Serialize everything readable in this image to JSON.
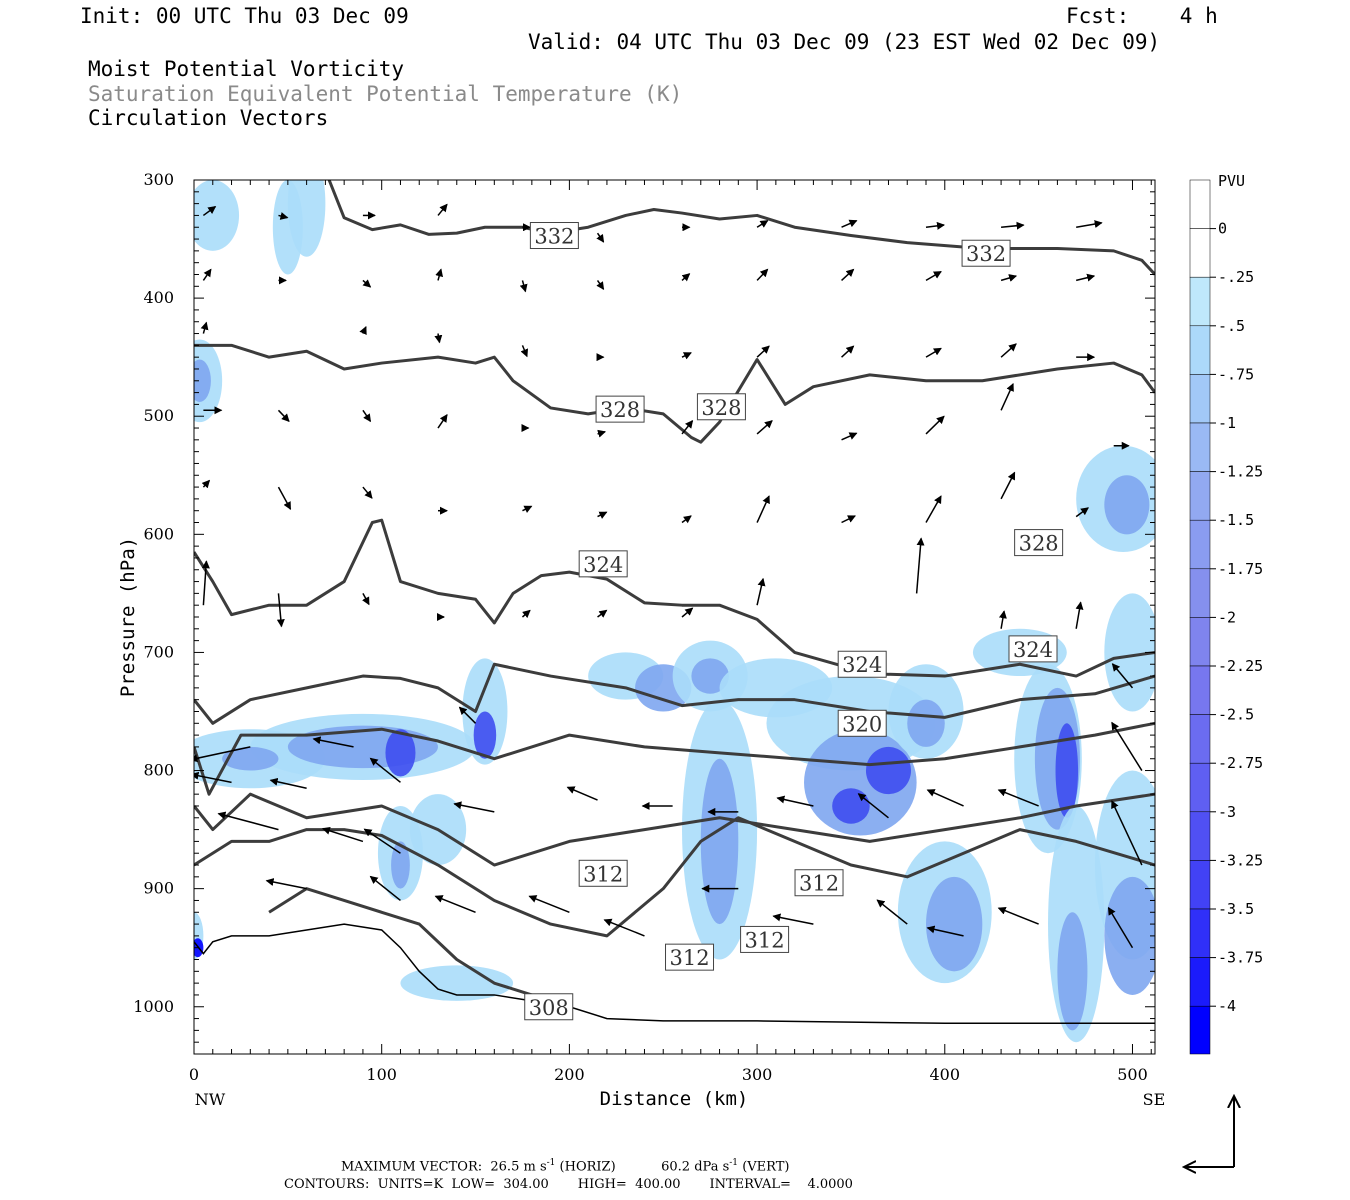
{
  "header": {
    "init": "Init: 00 UTC Thu 03 Dec 09",
    "fcst": "Fcst:    4 h",
    "valid": "Valid: 04 UTC Thu 03 Dec 09 (23 EST Wed 02 Dec 09)",
    "field1": "Moist Potential Vorticity",
    "field2": "Saturation Equivalent Potential Temperature (K)",
    "field3": "Circulation Vectors"
  },
  "colors": {
    "contour": "#3c3c3c",
    "pv_light": "#aaddfa",
    "pv_mid": "#7ea6f0",
    "pv_strong": "#3e4ef0",
    "pv_max": "#0000ff"
  },
  "colorbar": {
    "unit": "PVU",
    "labels": [
      "0",
      "-.25",
      "-.5",
      "-.75",
      "-1",
      "-1.25",
      "-1.5",
      "-1.75",
      "-2",
      "-2.25",
      "-2.5",
      "-2.75",
      "-3",
      "-3.25",
      "-3.5",
      "-3.75",
      "-4"
    ],
    "colors": [
      "#ffffff",
      "#ffffff",
      "#bfe8fb",
      "#acd9fa",
      "#a2c8f7",
      "#9ab9f4",
      "#92a9f1",
      "#8a9cf0",
      "#8590ee",
      "#7f84ee",
      "#7777ef",
      "#6b6cf0",
      "#5f5ff2",
      "#5050f3",
      "#4242f5",
      "#3030f8",
      "#1b1bfb",
      "#0000ff"
    ]
  },
  "footer": {
    "max_vector_label": "MAXIMUM VECTOR:",
    "horiz_value": "26.5",
    "horiz_unit": "m s",
    "horiz_exp": "-1",
    "horiz_tag": "(HORIZ)",
    "vert_value": "60.2",
    "vert_unit": "dPa s",
    "vert_exp": "-1",
    "vert_tag": "(VERT)",
    "contours_line": "CONTOURS:  UNITS=K  LOW=  304.00       HIGH=  400.00       INTERVAL=    4.0000"
  },
  "chart_data": {
    "type": "heatmap",
    "title": "Moist Potential Vorticity",
    "xlabel": "Distance (km)",
    "ylabel": "Pressure (hPa)",
    "xlim": [
      0,
      512
    ],
    "ylim": [
      1040,
      300
    ],
    "y_scale": "linear-inverted",
    "x_ticks": [
      0,
      100,
      200,
      300,
      400,
      500
    ],
    "x_tick_labels": [
      "0",
      "100",
      "200",
      "300",
      "400",
      "500"
    ],
    "x_end_labels": [
      "NW",
      "SE"
    ],
    "y_ticks": [
      300,
      400,
      500,
      600,
      700,
      800,
      900,
      1000
    ],
    "y_tick_labels": [
      "300",
      "400",
      "500",
      "600",
      "700",
      "800",
      "900",
      "1000"
    ],
    "contour_labels": [
      {
        "text": "332",
        "x": 192,
        "y": 347
      },
      {
        "text": "332",
        "x": 422,
        "y": 362
      },
      {
        "text": "328",
        "x": 227,
        "y": 494
      },
      {
        "text": "328",
        "x": 281,
        "y": 492
      },
      {
        "text": "328",
        "x": 450,
        "y": 607
      },
      {
        "text": "324",
        "x": 218,
        "y": 625
      },
      {
        "text": "324",
        "x": 356,
        "y": 710
      },
      {
        "text": "324",
        "x": 447,
        "y": 697
      },
      {
        "text": "320",
        "x": 356,
        "y": 760
      },
      {
        "text": "312",
        "x": 218,
        "y": 887
      },
      {
        "text": "312",
        "x": 333,
        "y": 895
      },
      {
        "text": "312",
        "x": 304,
        "y": 943
      },
      {
        "text": "312",
        "x": 264,
        "y": 958
      },
      {
        "text": "308",
        "x": 189,
        "y": 1000
      }
    ],
    "isentropes": [
      {
        "value": 332,
        "x": [
          72,
          80,
          95,
          110,
          125,
          140,
          155,
          175,
          190,
          210,
          230,
          245,
          260,
          280,
          300,
          320,
          350,
          380,
          420,
          460,
          490,
          505,
          512
        ],
        "y": [
          300,
          332,
          342,
          338,
          346,
          345,
          340,
          340,
          345,
          340,
          330,
          325,
          328,
          333,
          330,
          340,
          347,
          353,
          358,
          358,
          360,
          368,
          380
        ]
      },
      {
        "value": 328,
        "x": [
          0,
          20,
          40,
          60,
          80,
          100,
          130,
          150,
          160,
          170,
          190,
          210,
          230,
          250,
          265,
          270,
          280,
          300,
          315,
          330,
          360,
          390,
          420,
          460,
          490,
          505,
          512
        ],
        "y": [
          440,
          440,
          450,
          445,
          460,
          455,
          450,
          455,
          450,
          470,
          493,
          498,
          493,
          498,
          518,
          522,
          505,
          452,
          490,
          475,
          465,
          470,
          470,
          460,
          455,
          465,
          480
        ]
      },
      {
        "value": 324,
        "x": [
          0,
          10,
          20,
          40,
          60,
          80,
          95,
          100,
          110,
          130,
          150,
          160,
          170,
          185,
          200,
          220,
          240,
          260,
          280,
          300,
          320,
          360,
          400,
          440,
          470,
          490,
          512
        ],
        "y": [
          615,
          640,
          668,
          660,
          660,
          640,
          590,
          588,
          640,
          650,
          655,
          675,
          650,
          635,
          632,
          638,
          658,
          660,
          660,
          672,
          700,
          718,
          720,
          710,
          720,
          705,
          700
        ]
      }
    ],
    "max_vector": {
      "horiz_m_s": 26.5,
      "vert_dPa_s": 60.2
    },
    "contour_low": 304.0,
    "contour_high": 400.0,
    "contour_interval": 4.0
  }
}
